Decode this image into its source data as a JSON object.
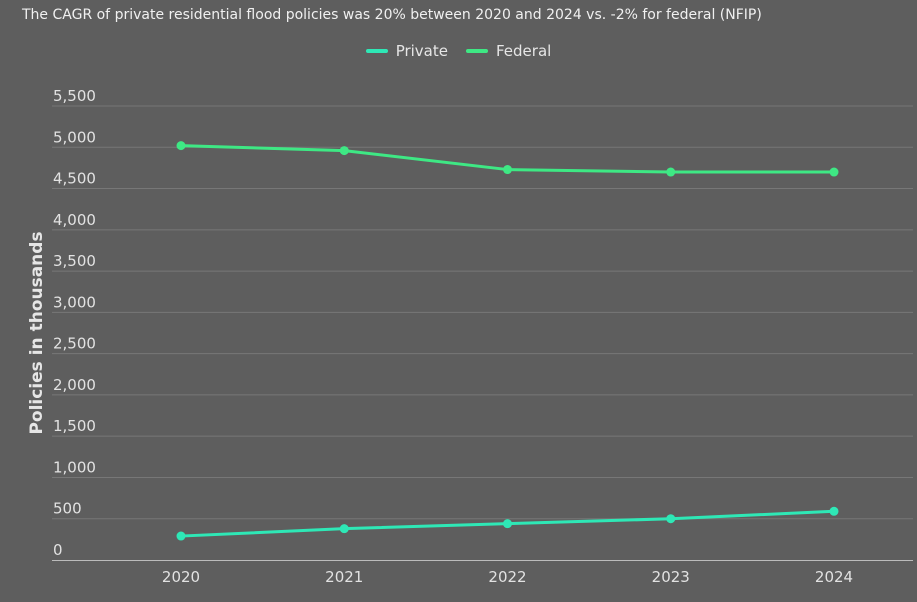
{
  "colors": {
    "background": "#5e5e5e",
    "grid": "#777777",
    "axis": "#bbbbbb"
  },
  "chart_data": {
    "type": "line",
    "title": "The CAGR of private residential flood policies was 20% between 2020 and 2024 vs. -2% for federal (NFIP)",
    "xlabel": "",
    "ylabel": "Policies in thousands",
    "categories": [
      "2020",
      "2021",
      "2022",
      "2023",
      "2024"
    ],
    "ylim": [
      0,
      5500
    ],
    "yticks": [
      0,
      500,
      1000,
      1500,
      2000,
      2500,
      3000,
      3500,
      4000,
      4500,
      5000,
      5500
    ],
    "ytick_labels": [
      "0",
      "500",
      "1,000",
      "1,500",
      "2,000",
      "2,500",
      "3,000",
      "3,500",
      "4,000",
      "4,500",
      "5,000",
      "5,500"
    ],
    "grid": true,
    "legend": "top-center",
    "series": [
      {
        "name": "Private",
        "color": "#2ee8b6",
        "values": [
          290,
          380,
          440,
          500,
          590
        ]
      },
      {
        "name": "Federal",
        "color": "#3ee884",
        "values": [
          5020,
          4960,
          4730,
          4700,
          4700
        ]
      }
    ]
  }
}
